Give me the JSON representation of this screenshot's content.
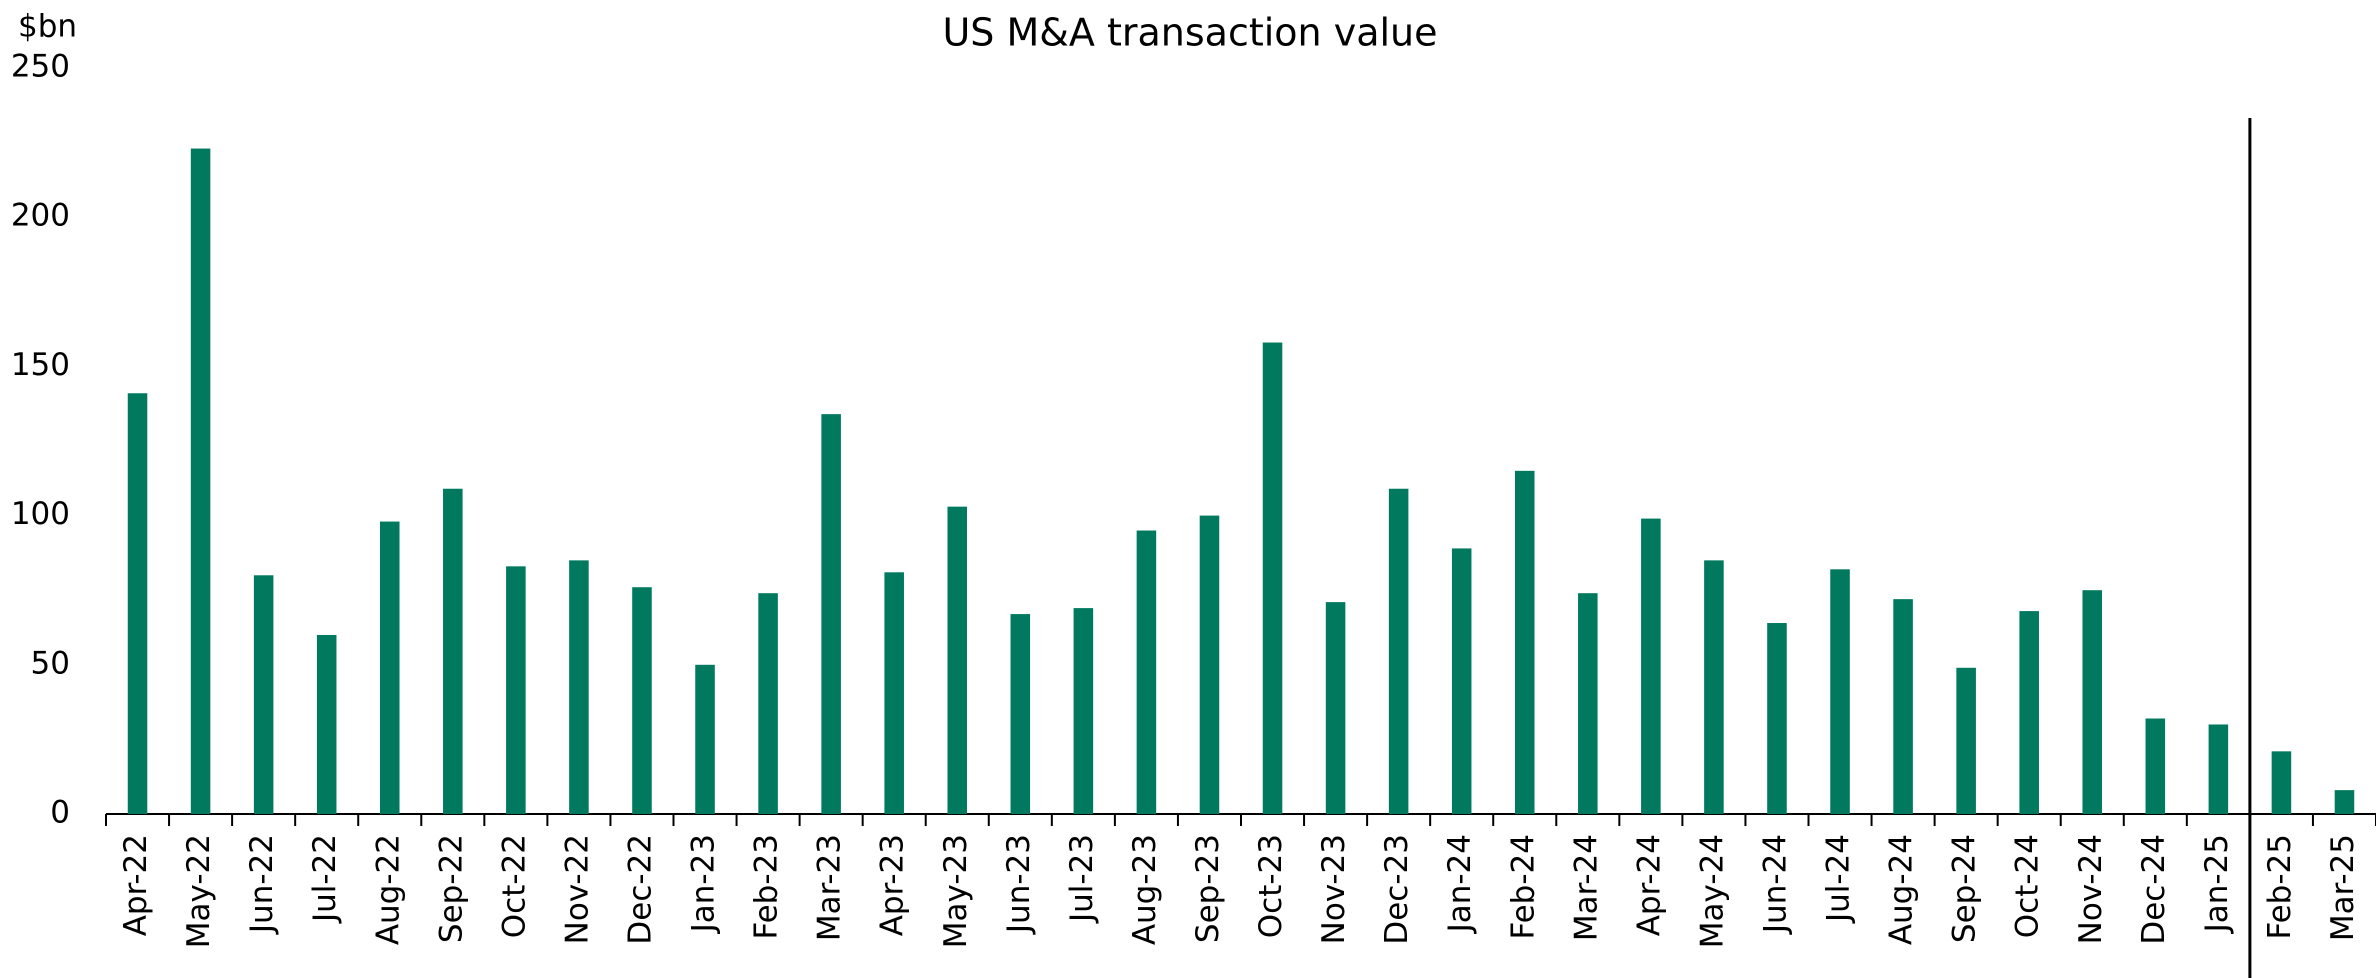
{
  "chart_data": {
    "type": "bar",
    "title": "US M&A transaction value",
    "y_label": "$bn",
    "categories": [
      "Apr-22",
      "May-22",
      "Jun-22",
      "Jul-22",
      "Aug-22",
      "Sep-22",
      "Oct-22",
      "Nov-22",
      "Dec-22",
      "Jan-23",
      "Feb-23",
      "Mar-23",
      "Apr-23",
      "May-23",
      "Jun-23",
      "Jul-23",
      "Aug-23",
      "Sep-23",
      "Oct-23",
      "Nov-23",
      "Dec-23",
      "Jan-24",
      "Feb-24",
      "Mar-24",
      "Apr-24",
      "May-24",
      "Jun-24",
      "Jul-24",
      "Aug-24",
      "Sep-24",
      "Oct-24",
      "Nov-24",
      "Dec-24",
      "Jan-25",
      "Feb-25",
      "Mar-25"
    ],
    "values": [
      141,
      223,
      80,
      60,
      98,
      109,
      83,
      85,
      76,
      50,
      74,
      134,
      81,
      103,
      67,
      69,
      95,
      100,
      158,
      71,
      109,
      89,
      115,
      74,
      99,
      85,
      64,
      82,
      72,
      49,
      68,
      75,
      32,
      30,
      21,
      8
    ],
    "color": "#00795f",
    "ylim": [
      0,
      250
    ],
    "yticks": [
      0,
      50,
      100,
      150,
      200,
      250
    ],
    "grid": false
  }
}
